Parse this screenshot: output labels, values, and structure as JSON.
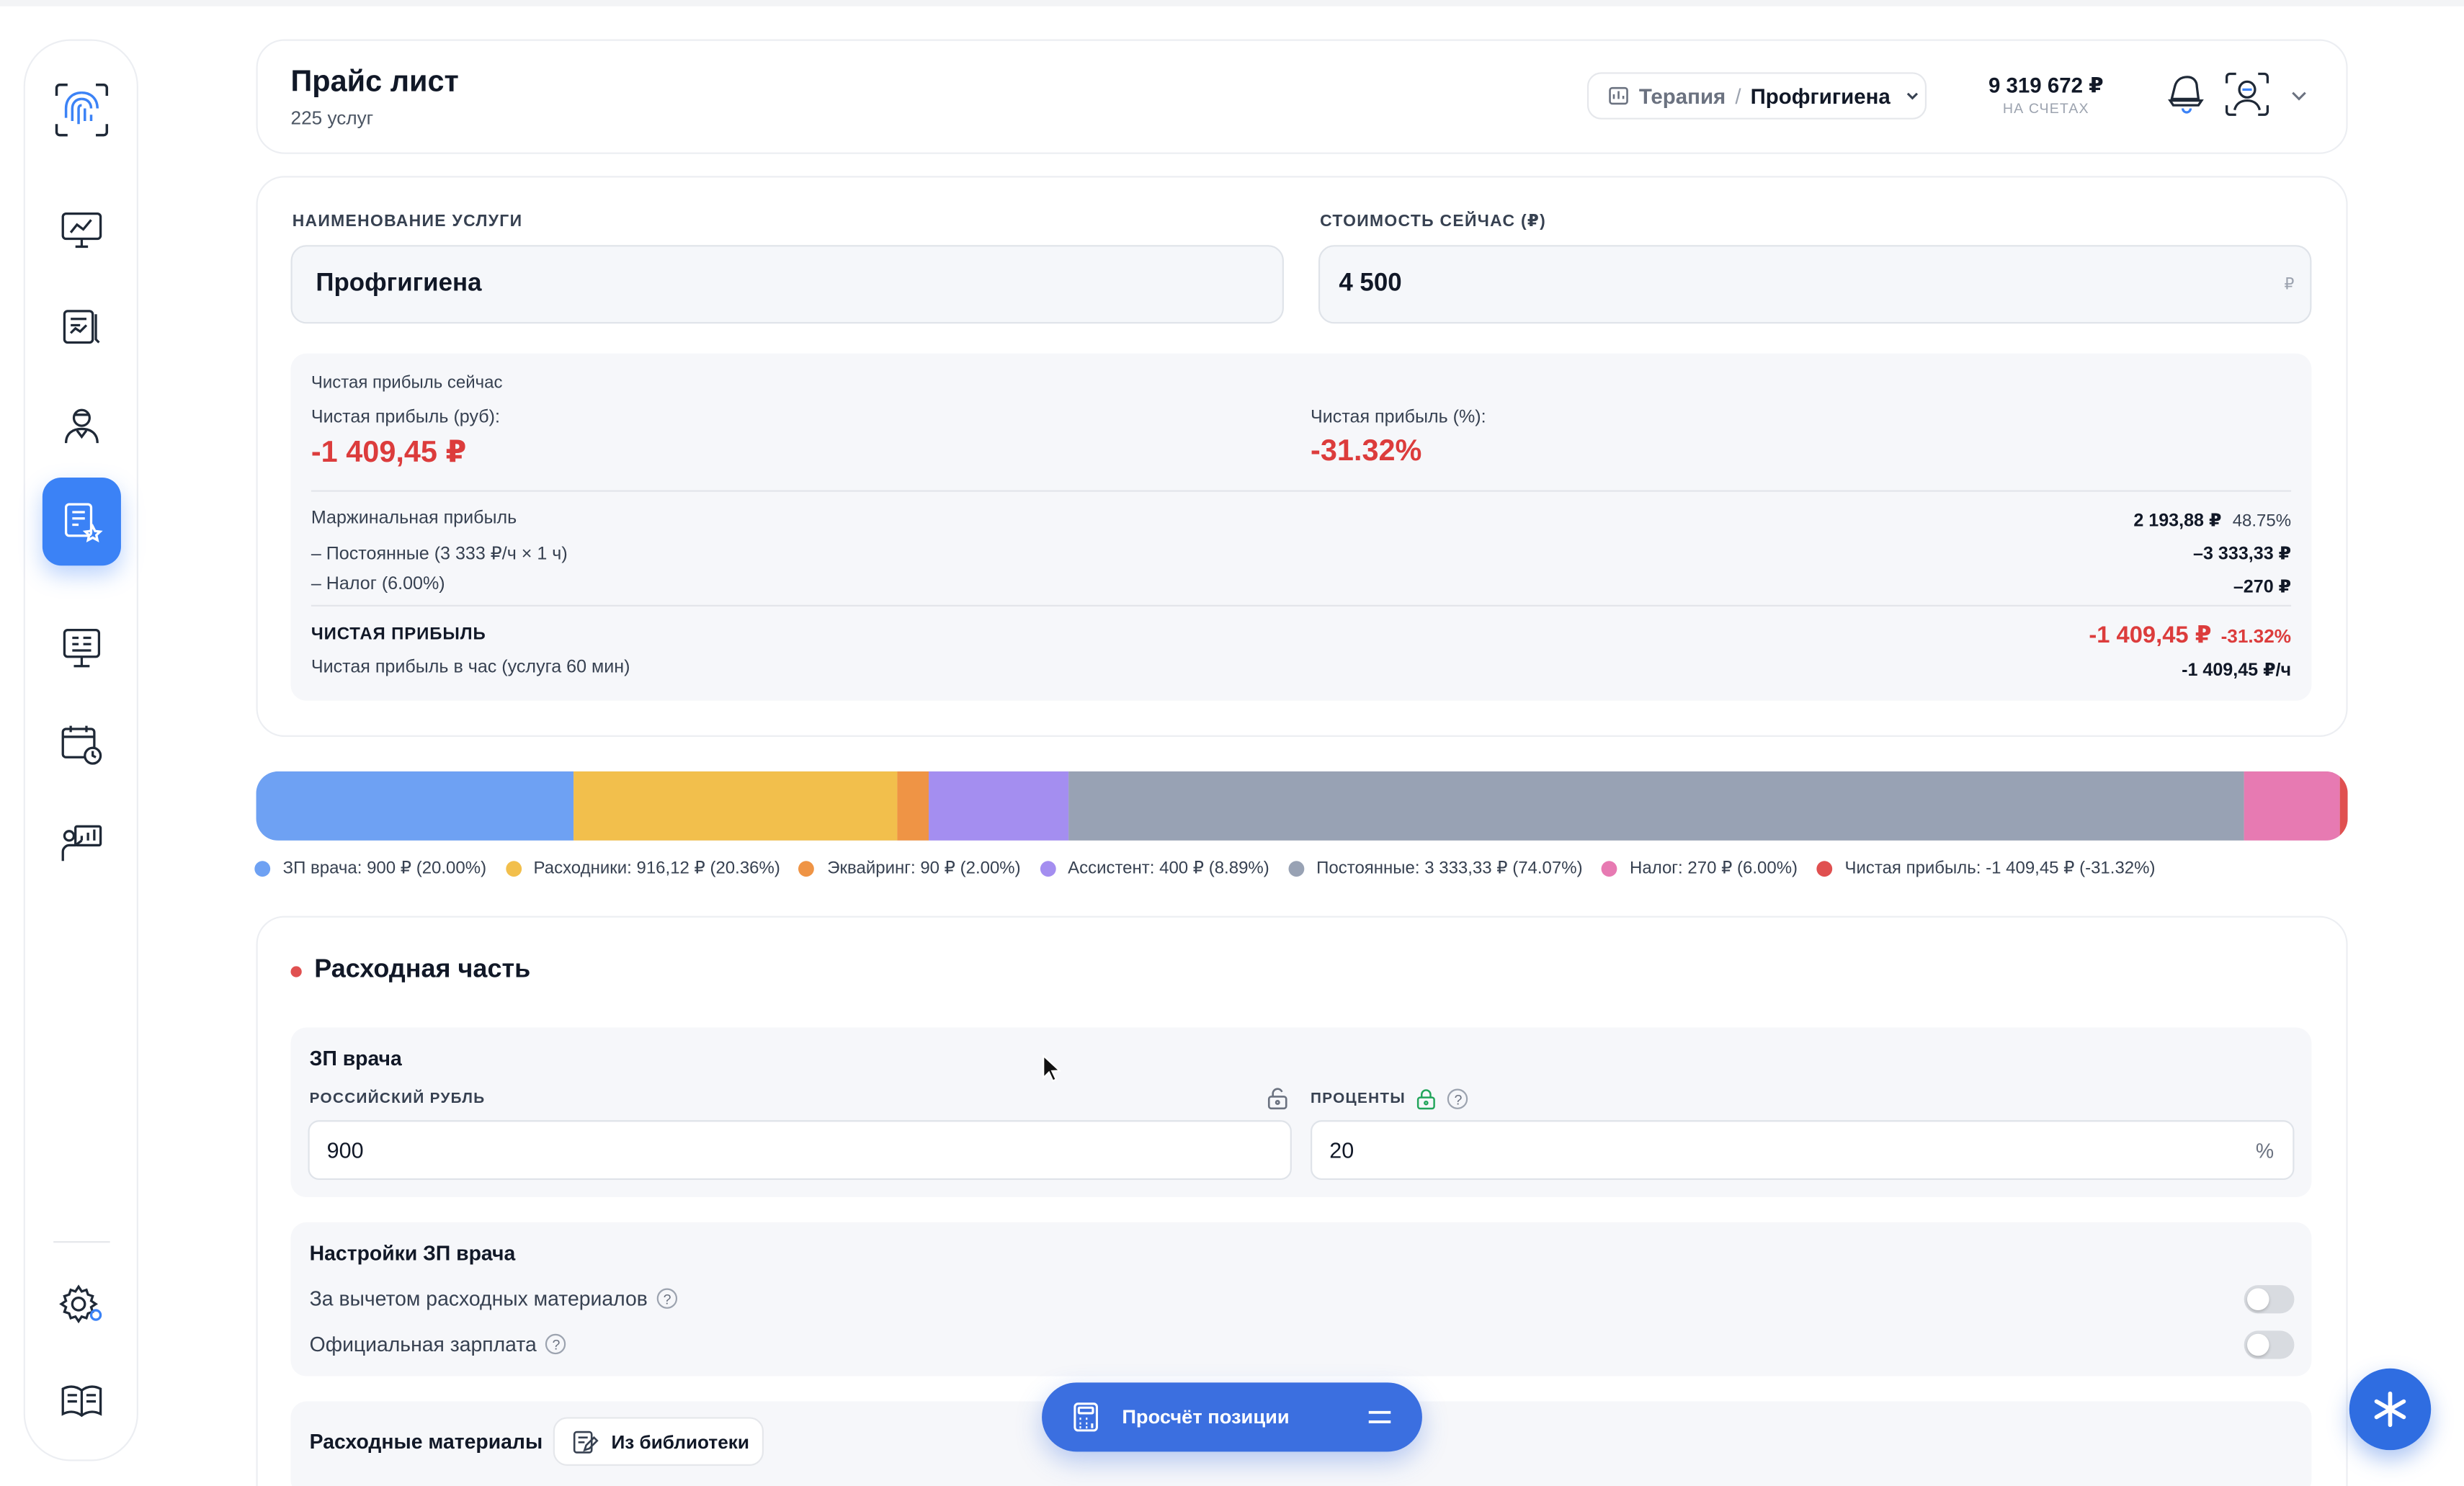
{
  "header": {
    "title": "Прайс лист",
    "subtitle": "225 услуг",
    "breadcrumb": {
      "parent": "Терапия",
      "sep": "/",
      "current": "Профгигиена"
    },
    "balance": {
      "amount": "9 319 672 ₽",
      "caption": "НА СЧЕТАХ"
    }
  },
  "sidebar": {
    "items": [
      {
        "name": "logo",
        "icon": "fingerprint-icon"
      },
      {
        "name": "dashboard",
        "icon": "monitor-chart-icon"
      },
      {
        "name": "reports",
        "icon": "document-chart-icon"
      },
      {
        "name": "doctors",
        "icon": "doctor-icon"
      },
      {
        "name": "price-list",
        "icon": "price-list-icon",
        "active": true
      },
      {
        "name": "analytics",
        "icon": "presentation-icon"
      },
      {
        "name": "schedule",
        "icon": "calendar-clock-icon"
      },
      {
        "name": "presentation",
        "icon": "teacher-board-icon"
      },
      {
        "name": "settings",
        "icon": "gear-icon"
      },
      {
        "name": "library",
        "icon": "book-icon"
      }
    ],
    "accent": "#3b82f6"
  },
  "service": {
    "name_label": "НАИМЕНОВАНИЕ УСЛУГИ",
    "name_value": "Профгигиена",
    "price_label": "СТОИМОСТЬ СЕЙЧАС (₽)",
    "price_value": "4 500",
    "price_currency": "₽"
  },
  "profit": {
    "heading": "Чистая прибыль сейчас",
    "rub_label": "Чистая прибыль (руб):",
    "rub_value": "-1 409,45 ₽",
    "pct_label": "Чистая прибыль (%):",
    "pct_value": "-31.32%",
    "rows": [
      {
        "label": "Маржинальная прибыль",
        "value": "2 193,88 ₽",
        "extra": "48.75%"
      },
      {
        "label": "– Постоянные (3 333 ₽/ч × 1 ч)",
        "value": "–3 333,33 ₽"
      },
      {
        "label": "– Налог (6.00%)",
        "value": "–270 ₽"
      }
    ],
    "net_label": "ЧИСТАЯ ПРИБЫЛЬ",
    "net_value": "-1 409,45 ₽",
    "net_pct": "-31.32%",
    "hour_label": "Чистая прибыль в час (услуга 60 мин)",
    "hour_value": "-1 409,45 ₽/ч"
  },
  "breakdown": {
    "segments": [
      {
        "label": "ЗП врача: 900 ₽ (20.00%)",
        "share": 20.0,
        "color": "#6ea1f3"
      },
      {
        "label": "Расходники: 916,12 ₽ (20.36%)",
        "share": 20.36,
        "color": "#f2bf4c"
      },
      {
        "label": "Эквайринг: 90 ₽ (2.00%)",
        "share": 2.0,
        "color": "#ef9445"
      },
      {
        "label": "Ассистент: 400 ₽ (8.89%)",
        "share": 8.89,
        "color": "#a48ef0"
      },
      {
        "label": "Постоянные: 3 333,33 ₽ (74.07%)",
        "share": 74.07,
        "color": "#98a2b4"
      },
      {
        "label": "Налог: 270 ₽ (6.00%)",
        "share": 6.0,
        "color": "#e77ab2"
      },
      {
        "label": "Чистая прибыль: -1 409,45 ₽ (-31.32%)",
        "share": 0.5,
        "color": "#e05050"
      }
    ]
  },
  "expenses": {
    "title": "Расходная часть",
    "doctor": {
      "title": "ЗП врача",
      "rub_label": "РОССИЙСКИЙ РУБЛЬ",
      "rub_value": "900",
      "pct_label": "ПРОЦЕНТЫ",
      "pct_value": "20",
      "pct_suffix": "%"
    },
    "settings": {
      "title": "Настройки ЗП врача",
      "options": [
        {
          "label": "За вычетом расходных материалов",
          "enabled": false
        },
        {
          "label": "Официальная зарплата",
          "enabled": false
        }
      ]
    },
    "materials": {
      "title": "Расходные материалы",
      "library_button": "Из библиотеки"
    }
  },
  "footer": {
    "calc_button": "Просчёт позиции"
  }
}
